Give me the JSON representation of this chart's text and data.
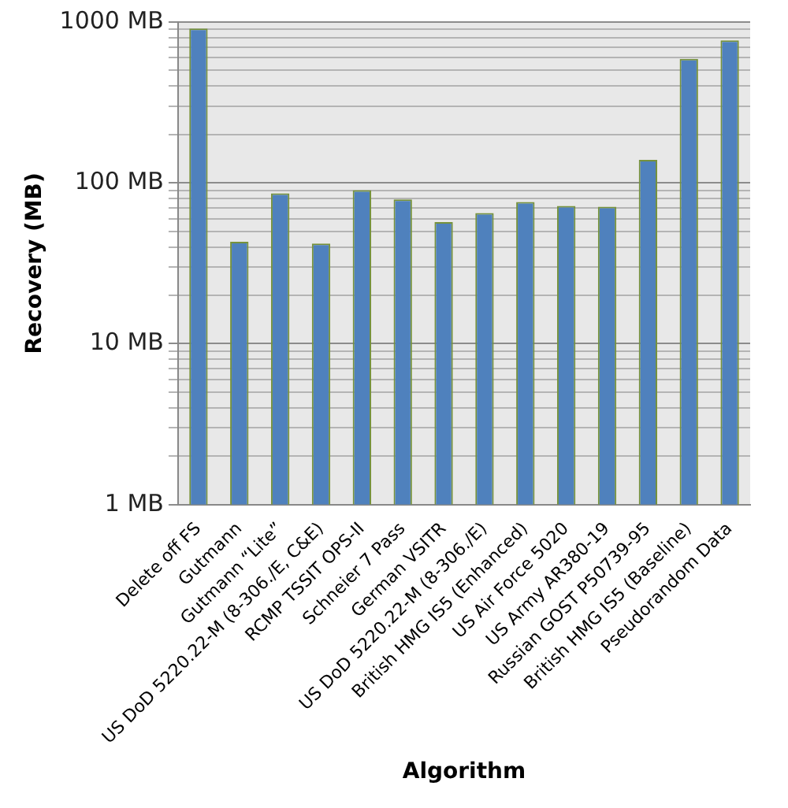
{
  "chart_data": {
    "type": "bar",
    "xlabel": "Algorithm",
    "ylabel": "Recovery (MB)",
    "categories": [
      "Delete off FS",
      "Gutmann",
      "Gutmann “Lite”",
      "US DoD 5220.22-M (8-306./E, C&E)",
      "RCMP TSSIT OPS-II",
      "Schneier 7 Pass",
      "German VSITR",
      "US DoD 5220.22-M (8-306./E)",
      "British HMG IS5 (Enhanced)",
      "US Air Force 5020",
      "US Army AR380-19",
      "Russian GOST P50739-95",
      "British HMG IS5 (Baseline)",
      "Pseudorandom Data"
    ],
    "values": [
      910,
      43,
      86,
      42,
      90,
      79,
      57,
      65,
      76,
      72,
      71,
      139,
      590,
      770
    ],
    "color": "#4f81bd",
    "log": "y",
    "ylim": [
      1,
      1000
    ],
    "yticks": [
      {
        "value": 1,
        "label": "1 MB"
      },
      {
        "value": 2,
        "label": null
      },
      {
        "value": 3,
        "label": null
      },
      {
        "value": 4,
        "label": null
      },
      {
        "value": 5,
        "label": null
      },
      {
        "value": 6,
        "label": null
      },
      {
        "value": 7,
        "label": null
      },
      {
        "value": 8,
        "label": null
      },
      {
        "value": 9,
        "label": null
      },
      {
        "value": 10,
        "label": "10 MB"
      },
      {
        "value": 20,
        "label": null
      },
      {
        "value": 30,
        "label": null
      },
      {
        "value": 40,
        "label": null
      },
      {
        "value": 50,
        "label": null
      },
      {
        "value": 60,
        "label": null
      },
      {
        "value": 70,
        "label": null
      },
      {
        "value": 80,
        "label": null
      },
      {
        "value": 90,
        "label": null
      },
      {
        "value": 100,
        "label": "100 MB"
      },
      {
        "value": 200,
        "label": null
      },
      {
        "value": 300,
        "label": null
      },
      {
        "value": 400,
        "label": null
      },
      {
        "value": 500,
        "label": null
      },
      {
        "value": 600,
        "label": null
      },
      {
        "value": 700,
        "label": null
      },
      {
        "value": 800,
        "label": null
      },
      {
        "value": 900,
        "label": null
      },
      {
        "value": 1000,
        "label": "1000 MB"
      }
    ],
    "grid": "y",
    "legend": false
  }
}
